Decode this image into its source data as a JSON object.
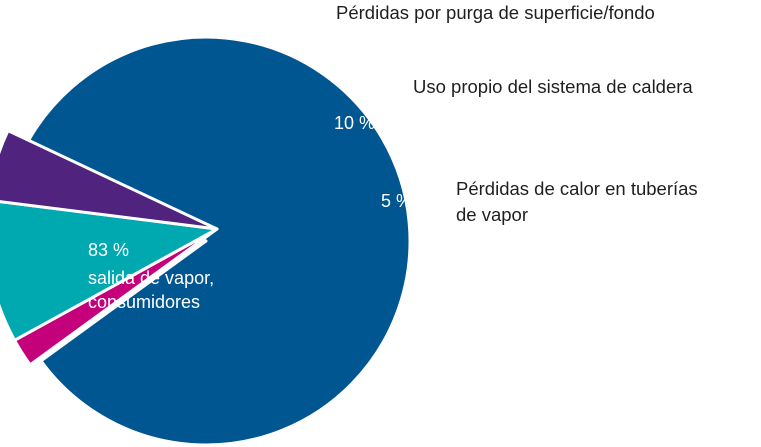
{
  "chart_data": {
    "type": "pie",
    "title": "",
    "slices": [
      {
        "value": 83,
        "value_label": "83 %",
        "label_lines": [
          "salida de vapor,",
          "consumidores"
        ],
        "color": "#005691",
        "label_position": "inside",
        "exploded": false
      },
      {
        "value": 2,
        "value_label": "2 %",
        "label_lines": [
          "Pérdidas por purga de superficie/fondo"
        ],
        "color": "#C4007A",
        "label_position": "outside",
        "exploded": true
      },
      {
        "value": 10,
        "value_label": "10 %",
        "label_lines": [
          "Uso propio del sistema de caldera"
        ],
        "color": "#00A8B0",
        "label_position": "outside",
        "exploded": true
      },
      {
        "value": 5,
        "value_label": "5 %",
        "label_lines": [
          "Pérdidas de calor en tuberías",
          "de vapor"
        ],
        "color": "#50237F",
        "label_position": "outside",
        "exploded": true
      }
    ]
  }
}
